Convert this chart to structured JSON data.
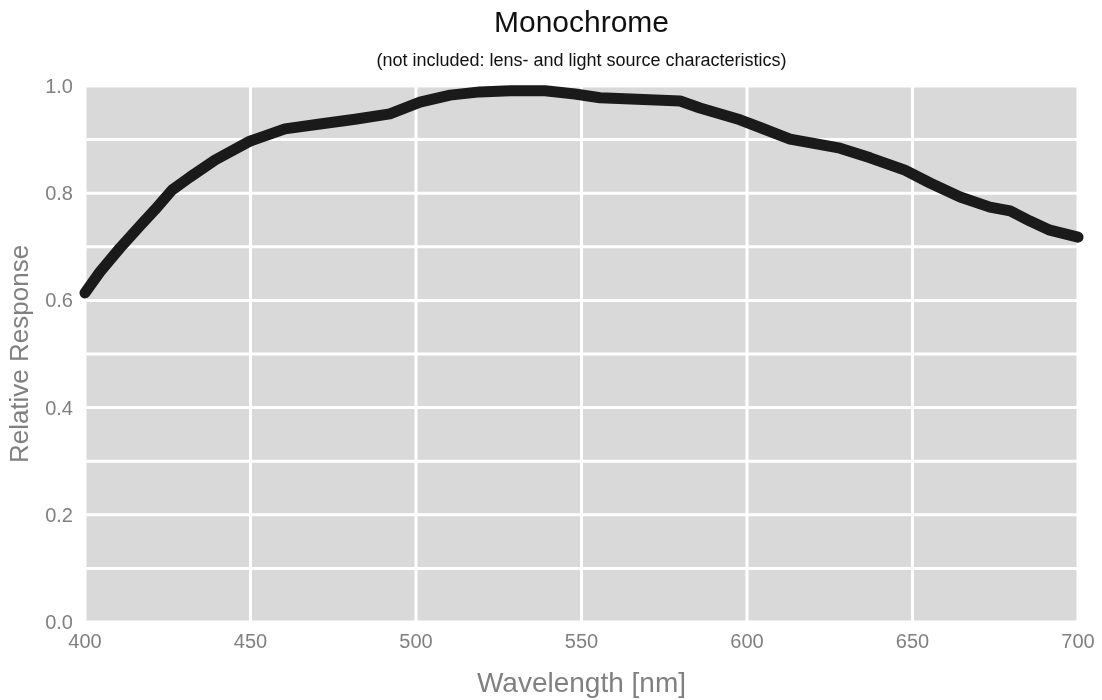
{
  "chart_data": {
    "type": "line",
    "title": "Monochrome",
    "subtitle": "(not included: lens- and light source characteristics)",
    "xlabel": "Wavelength [nm]",
    "ylabel": "Relative Response",
    "xlim": [
      400,
      700
    ],
    "xticks": [
      400,
      450,
      500,
      550,
      600,
      650,
      700
    ],
    "ylim": [
      0,
      1
    ],
    "yticks": [
      {
        "value": 0,
        "label": "0.0"
      },
      {
        "value": 0.1,
        "label": null
      },
      0.2,
      {
        "value": 0.3,
        "label": null
      },
      0.4,
      {
        "value": 0.5,
        "label": null
      },
      0.6,
      {
        "value": 0.7,
        "label": null
      },
      0.8,
      {
        "value": 0.9,
        "label": null
      },
      {
        "value": 1,
        "label": "1.0"
      }
    ],
    "grid": true,
    "marker": "none",
    "line_style": "solid",
    "series": [
      {
        "color": "#1a1a1a",
        "x": [
          400,
          404.5,
          410.6,
          416.6,
          421.1,
          426.3,
          431.7,
          439.3,
          449.8,
          460.4,
          471,
          481.6,
          492.1,
          501.2,
          510.3,
          519.3,
          528.4,
          539,
          548,
          555.6,
          563.1,
          579.8,
          585.8,
          597.9,
          613,
          628.1,
          637.2,
          647.7,
          655.3,
          664.4,
          673.4,
          679.5,
          685.5,
          691.5,
          700
        ],
        "values": [
          0.614,
          0.653,
          0.698,
          0.739,
          0.769,
          0.806,
          0.83,
          0.862,
          0.897,
          0.92,
          0.929,
          0.938,
          0.948,
          0.97,
          0.983,
          0.989,
          0.991,
          0.991,
          0.985,
          0.978,
          0.976,
          0.972,
          0.959,
          0.937,
          0.901,
          0.884,
          0.866,
          0.843,
          0.819,
          0.793,
          0.774,
          0.767,
          0.748,
          0.731,
          0.718
        ]
      }
    ]
  }
}
